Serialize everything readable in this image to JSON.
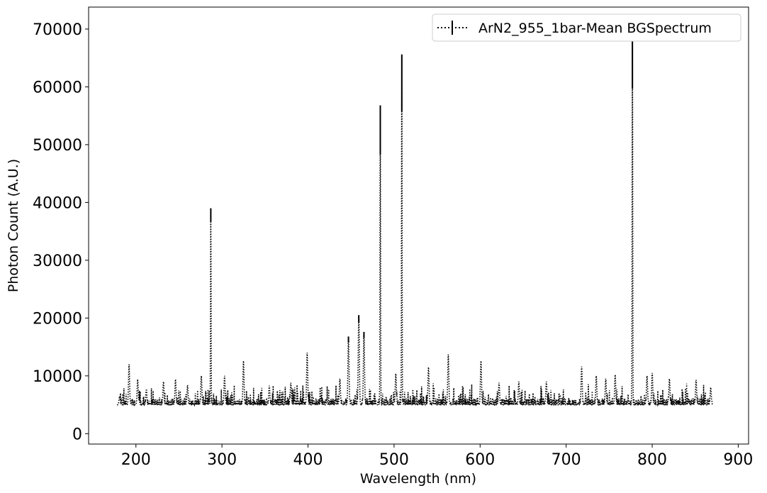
{
  "chart_data": {
    "type": "line",
    "title": "",
    "xlabel": "Wavelength (nm)",
    "ylabel": "Photon Count (A.U.)",
    "xlim": [
      145,
      912
    ],
    "ylim": [
      -1800,
      73800
    ],
    "xticks": [
      200,
      300,
      400,
      500,
      600,
      700,
      800,
      900
    ],
    "xtick_labels": [
      "200",
      "300",
      "400",
      "500",
      "600",
      "700",
      "800",
      "900"
    ],
    "yticks": [
      0,
      10000,
      20000,
      30000,
      40000,
      50000,
      60000,
      70000
    ],
    "ytick_labels": [
      "0",
      "10000",
      "20000",
      "30000",
      "40000",
      "50000",
      "60000",
      "70000"
    ],
    "grid": false,
    "legend_position": "top-right",
    "series": [
      {
        "name": "ArN2_955_1bar-Mean BGSpectrum",
        "style": "dotted",
        "error_bars": true,
        "color": "#000000",
        "x_range": [
          178,
          870
        ],
        "baseline": 5000,
        "noise_amplitude": 2000,
        "peaks": [
          {
            "x": 179,
            "y": 1600
          },
          {
            "x": 181,
            "y": 6500
          },
          {
            "x": 192,
            "y": 12000
          },
          {
            "x": 202,
            "y": 9400
          },
          {
            "x": 212,
            "y": 7600
          },
          {
            "x": 232,
            "y": 9000
          },
          {
            "x": 246,
            "y": 9400
          },
          {
            "x": 260,
            "y": 8400
          },
          {
            "x": 276,
            "y": 10000
          },
          {
            "x": 287,
            "y": 39000
          },
          {
            "x": 303,
            "y": 10000
          },
          {
            "x": 325,
            "y": 12600
          },
          {
            "x": 355,
            "y": 8300
          },
          {
            "x": 380,
            "y": 8800
          },
          {
            "x": 399,
            "y": 14000
          },
          {
            "x": 437,
            "y": 9500
          },
          {
            "x": 447,
            "y": 16800
          },
          {
            "x": 459,
            "y": 20500
          },
          {
            "x": 465,
            "y": 17600
          },
          {
            "x": 484,
            "y": 56800
          },
          {
            "x": 502,
            "y": 10400
          },
          {
            "x": 509,
            "y": 65600
          },
          {
            "x": 540,
            "y": 11500
          },
          {
            "x": 563,
            "y": 13700
          },
          {
            "x": 601,
            "y": 12600
          },
          {
            "x": 622,
            "y": 8800
          },
          {
            "x": 645,
            "y": 9000
          },
          {
            "x": 677,
            "y": 9000
          },
          {
            "x": 718,
            "y": 11600
          },
          {
            "x": 735,
            "y": 10000
          },
          {
            "x": 746,
            "y": 9500
          },
          {
            "x": 757,
            "y": 10200
          },
          {
            "x": 777,
            "y": 70200
          },
          {
            "x": 794,
            "y": 10000
          },
          {
            "x": 800,
            "y": 10500
          },
          {
            "x": 820,
            "y": 9500
          },
          {
            "x": 851,
            "y": 9300
          },
          {
            "x": 868,
            "y": 8000
          }
        ]
      }
    ]
  }
}
